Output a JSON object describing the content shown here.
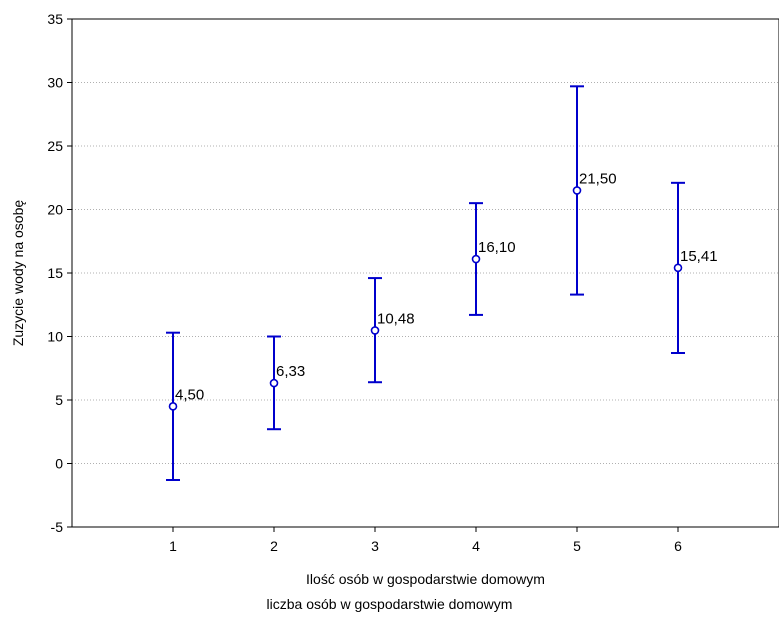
{
  "chart_data": {
    "type": "scatter",
    "x": [
      1,
      2,
      3,
      4,
      5,
      6
    ],
    "means": [
      4.5,
      6.33,
      10.48,
      16.1,
      21.5,
      15.41
    ],
    "lower": [
      -1.3,
      2.7,
      6.4,
      11.7,
      13.3,
      8.7
    ],
    "upper": [
      10.3,
      10.0,
      14.6,
      20.5,
      29.7,
      22.1
    ],
    "data_labels": [
      "4,50",
      "6,33",
      "10,48",
      "16,10",
      "21,50",
      "15,41"
    ],
    "xticks": [
      "1",
      "2",
      "3",
      "4",
      "5",
      "6"
    ],
    "yticks": [
      "-5",
      "0",
      "5",
      "10",
      "15",
      "20",
      "25",
      "30",
      "35"
    ],
    "xlim": [
      0,
      7
    ],
    "ylim": [
      -5,
      35
    ],
    "xlabel": "Ilość osób w gospodarstwie domowym",
    "ylabel": "Zuzycie wody na osobę",
    "grid": true,
    "color": "#0000cc"
  },
  "footer": {
    "label": "liczba osób w gospodarstwie domowym"
  }
}
